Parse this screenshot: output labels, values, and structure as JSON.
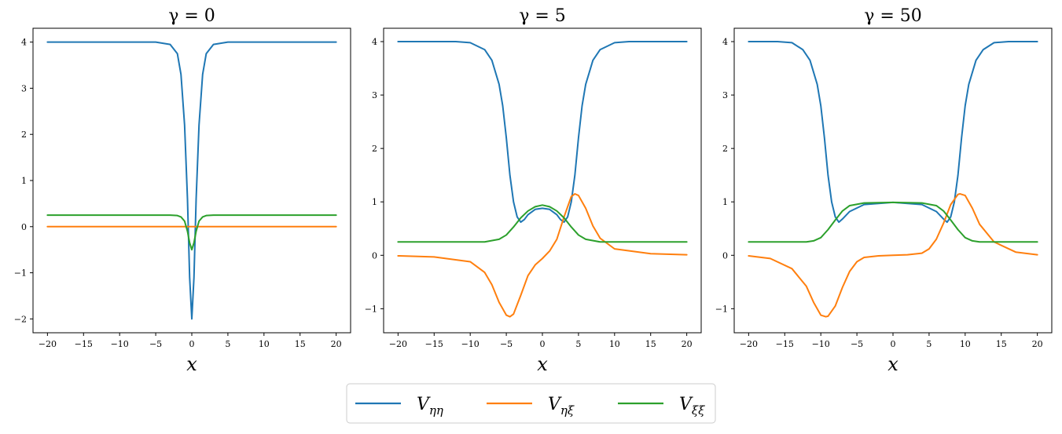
{
  "chart_data": [
    {
      "type": "line",
      "title": "γ = 0",
      "xlabel": "x",
      "ylabel": "",
      "xlim": [
        -22,
        22
      ],
      "ylim": [
        -2.3,
        4.3
      ],
      "xticks": [
        -20,
        -15,
        -10,
        -5,
        0,
        5,
        10,
        15,
        20
      ],
      "xtick_labels": [
        "−20",
        "−15",
        "−10",
        "−5",
        "0",
        "5",
        "10",
        "15",
        "20"
      ],
      "yticks": [
        -2,
        -1,
        0,
        1,
        2,
        3,
        4
      ],
      "ytick_labels": [
        "−2",
        "−1",
        "0",
        "1",
        "2",
        "3",
        "4"
      ],
      "grid": false,
      "series": [
        {
          "name": "Vηη",
          "color": "#1f77b4",
          "x": [
            -20,
            -10,
            -5,
            -3,
            -2,
            -1.5,
            -1,
            -0.6,
            -0.3,
            0,
            0.3,
            0.6,
            1,
            1.5,
            2,
            3,
            5,
            10,
            20
          ],
          "y": [
            4.0,
            4.0,
            4.0,
            3.95,
            3.75,
            3.3,
            2.2,
            0.6,
            -1.1,
            -2.0,
            -1.1,
            0.6,
            2.2,
            3.3,
            3.75,
            3.95,
            4.0,
            4.0,
            4.0
          ]
        },
        {
          "name": "Vηξ",
          "color": "#ff7f0e",
          "x": [
            -20,
            20
          ],
          "y": [
            0.0,
            0.0
          ]
        },
        {
          "name": "Vξξ",
          "color": "#2ca02c",
          "x": [
            -20,
            -10,
            -3,
            -2,
            -1.5,
            -1,
            -0.6,
            -0.3,
            0,
            0.3,
            0.6,
            1,
            1.5,
            2,
            3,
            10,
            20
          ],
          "y": [
            0.25,
            0.25,
            0.25,
            0.24,
            0.21,
            0.12,
            -0.1,
            -0.35,
            -0.5,
            -0.35,
            -0.1,
            0.12,
            0.21,
            0.24,
            0.25,
            0.25,
            0.25
          ]
        }
      ]
    },
    {
      "type": "line",
      "title": "γ = 5",
      "xlabel": "x",
      "ylabel": "",
      "xlim": [
        -22,
        22
      ],
      "ylim": [
        -1.45,
        4.25
      ],
      "xticks": [
        -20,
        -15,
        -10,
        -5,
        0,
        5,
        10,
        15,
        20
      ],
      "xtick_labels": [
        "−20",
        "−15",
        "−10",
        "−5",
        "0",
        "5",
        "10",
        "15",
        "20"
      ],
      "yticks": [
        -1,
        0,
        1,
        2,
        3,
        4
      ],
      "ytick_labels": [
        "−1",
        "0",
        "1",
        "2",
        "3",
        "4"
      ],
      "grid": false,
      "series": [
        {
          "name": "Vηη",
          "color": "#1f77b4",
          "x": [
            -20,
            -12,
            -10,
            -8,
            -7,
            -6,
            -5.5,
            -5,
            -4.5,
            -4,
            -3.5,
            -3,
            -2.5,
            -2,
            -1,
            0,
            1,
            2,
            2.5,
            3,
            3.5,
            4,
            4.5,
            5,
            5.5,
            6,
            7,
            8,
            10,
            12,
            20
          ],
          "y": [
            4.0,
            4.0,
            3.98,
            3.85,
            3.65,
            3.2,
            2.8,
            2.2,
            1.5,
            1.0,
            0.72,
            0.62,
            0.67,
            0.76,
            0.86,
            0.88,
            0.86,
            0.76,
            0.67,
            0.62,
            0.72,
            1.0,
            1.5,
            2.2,
            2.8,
            3.2,
            3.65,
            3.85,
            3.98,
            4.0,
            4.0
          ]
        },
        {
          "name": "Vηξ",
          "color": "#ff7f0e",
          "x": [
            -20,
            -15,
            -10,
            -8,
            -7,
            -6,
            -5,
            -4.5,
            -4,
            -3,
            -2,
            -1,
            0,
            1,
            2,
            3,
            4,
            4.5,
            5,
            6,
            7,
            8,
            10,
            15,
            20
          ],
          "y": [
            -0.01,
            -0.03,
            -0.12,
            -0.32,
            -0.55,
            -0.88,
            -1.12,
            -1.15,
            -1.1,
            -0.75,
            -0.38,
            -0.18,
            -0.06,
            0.08,
            0.3,
            0.72,
            1.1,
            1.15,
            1.12,
            0.88,
            0.55,
            0.32,
            0.12,
            0.03,
            0.01
          ]
        },
        {
          "name": "Vξξ",
          "color": "#2ca02c",
          "x": [
            -20,
            -8,
            -6,
            -5,
            -4,
            -3,
            -2,
            -1,
            0,
            1,
            2,
            3,
            4,
            5,
            6,
            8,
            20
          ],
          "y": [
            0.25,
            0.25,
            0.3,
            0.38,
            0.53,
            0.7,
            0.83,
            0.91,
            0.94,
            0.91,
            0.83,
            0.7,
            0.53,
            0.38,
            0.3,
            0.25,
            0.25
          ]
        }
      ]
    },
    {
      "type": "line",
      "title": "γ = 50",
      "xlabel": "x",
      "ylabel": "",
      "xlim": [
        -22,
        22
      ],
      "ylim": [
        -1.45,
        4.25
      ],
      "xticks": [
        -20,
        -15,
        -10,
        -5,
        0,
        5,
        10,
        15,
        20
      ],
      "xtick_labels": [
        "−20",
        "−15",
        "−10",
        "−5",
        "0",
        "5",
        "10",
        "15",
        "20"
      ],
      "yticks": [
        -1,
        0,
        1,
        2,
        3,
        4
      ],
      "ytick_labels": [
        "−1",
        "0",
        "1",
        "2",
        "3",
        "4"
      ],
      "grid": false,
      "series": [
        {
          "name": "Vηη",
          "color": "#1f77b4",
          "x": [
            -20,
            -16,
            -14,
            -12.5,
            -11.5,
            -10.5,
            -10,
            -9.5,
            -9,
            -8.5,
            -8,
            -7.5,
            -7,
            -6,
            -4,
            0,
            4,
            6,
            7,
            7.5,
            8,
            8.5,
            9,
            9.5,
            10,
            10.5,
            11.5,
            12.5,
            14,
            16,
            20
          ],
          "y": [
            4.0,
            4.0,
            3.98,
            3.85,
            3.65,
            3.2,
            2.8,
            2.2,
            1.5,
            1.0,
            0.72,
            0.62,
            0.68,
            0.82,
            0.95,
            0.99,
            0.95,
            0.82,
            0.68,
            0.62,
            0.72,
            1.0,
            1.5,
            2.2,
            2.8,
            3.2,
            3.65,
            3.85,
            3.98,
            4.0,
            4.0
          ]
        },
        {
          "name": "Vηξ",
          "color": "#ff7f0e",
          "x": [
            -20,
            -17,
            -14,
            -12,
            -11,
            -10,
            -9.3,
            -9,
            -8,
            -7,
            -6,
            -5,
            -4,
            -2,
            0,
            2,
            4,
            5,
            6,
            7,
            8,
            9,
            9.3,
            10,
            11,
            12,
            14,
            17,
            20
          ],
          "y": [
            -0.01,
            -0.06,
            -0.25,
            -0.58,
            -0.88,
            -1.12,
            -1.15,
            -1.14,
            -0.95,
            -0.6,
            -0.3,
            -0.12,
            -0.04,
            -0.01,
            0.0,
            0.01,
            0.04,
            0.12,
            0.3,
            0.6,
            0.95,
            1.14,
            1.15,
            1.12,
            0.88,
            0.58,
            0.25,
            0.06,
            0.01
          ]
        },
        {
          "name": "Vξξ",
          "color": "#2ca02c",
          "x": [
            -20,
            -12,
            -11,
            -10,
            -9,
            -8,
            -7,
            -6,
            -4,
            0,
            4,
            6,
            7,
            8,
            9,
            10,
            11,
            12,
            20
          ],
          "y": [
            0.25,
            0.25,
            0.27,
            0.33,
            0.48,
            0.66,
            0.83,
            0.93,
            0.98,
            0.99,
            0.98,
            0.93,
            0.83,
            0.66,
            0.48,
            0.33,
            0.27,
            0.25,
            0.25
          ]
        }
      ]
    }
  ],
  "legend": {
    "placement": "bottom-center",
    "entries": [
      {
        "label": "Vηη",
        "base": "V",
        "sub": "ηη",
        "color": "#1f77b4"
      },
      {
        "label": "Vηξ",
        "base": "V",
        "sub": "ηξ",
        "color": "#ff7f0e"
      },
      {
        "label": "Vξξ",
        "base": "V",
        "sub": "ξξ",
        "color": "#2ca02c"
      }
    ]
  }
}
